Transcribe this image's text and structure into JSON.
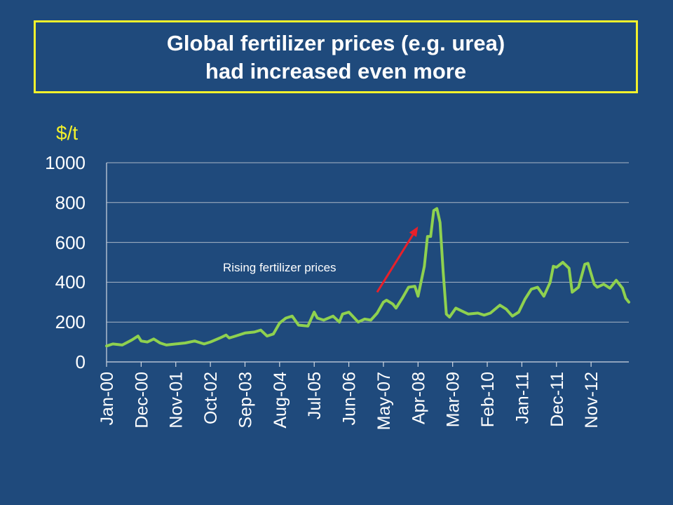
{
  "title": {
    "line1": "Global fertilizer prices (e.g. urea)",
    "line2": "had increased even more"
  },
  "colors": {
    "background": "#1f4a7c",
    "title_border": "#f3f12c",
    "series": "#8fd14f",
    "arrow": "#e8202a",
    "grid": "#a9b6c6"
  },
  "chart_data": {
    "type": "line",
    "title": "Global fertilizer prices (e.g. urea)",
    "ylabel": "$/t",
    "ylim": [
      0,
      1000
    ],
    "yticks": [
      0,
      200,
      400,
      600,
      800,
      1000
    ],
    "xtick_labels": [
      "Jan-00",
      "Dec-00",
      "Nov-01",
      "Oct-02",
      "Sep-03",
      "Aug-04",
      "Jul-05",
      "Jun-06",
      "May-07",
      "Apr-08",
      "Mar-09",
      "Feb-10",
      "Jan-11",
      "Dec-11",
      "Nov-12"
    ],
    "x_start": "Jan-00",
    "x_end": "Nov-13",
    "grid": "horizontal",
    "annotation": {
      "text": "Rising fertilizer prices",
      "arrow_from": [
        "Mar-07",
        350
      ],
      "arrow_to": [
        "Apr-08",
        680
      ]
    },
    "series": [
      {
        "points": [
          [
            "Jan-00",
            80
          ],
          [
            "Mar-00",
            90
          ],
          [
            "Jun-00",
            85
          ],
          [
            "Sep-00",
            110
          ],
          [
            "Nov-00",
            130
          ],
          [
            "Dec-00",
            105
          ],
          [
            "Feb-01",
            100
          ],
          [
            "Apr-01",
            115
          ],
          [
            "Jun-01",
            95
          ],
          [
            "Aug-01",
            85
          ],
          [
            "Nov-01",
            90
          ],
          [
            "Feb-02",
            95
          ],
          [
            "May-02",
            105
          ],
          [
            "Aug-02",
            90
          ],
          [
            "Oct-02",
            100
          ],
          [
            "Jan-03",
            120
          ],
          [
            "Mar-03",
            135
          ],
          [
            "Apr-03",
            120
          ],
          [
            "Jun-03",
            130
          ],
          [
            "Sep-03",
            145
          ],
          [
            "Dec-03",
            150
          ],
          [
            "Feb-04",
            160
          ],
          [
            "Apr-04",
            130
          ],
          [
            "Jun-04",
            140
          ],
          [
            "Aug-04",
            195
          ],
          [
            "Oct-04",
            220
          ],
          [
            "Dec-04",
            230
          ],
          [
            "Feb-05",
            185
          ],
          [
            "May-05",
            180
          ],
          [
            "Jul-05",
            250
          ],
          [
            "Aug-05",
            220
          ],
          [
            "Oct-05",
            210
          ],
          [
            "Jan-06",
            230
          ],
          [
            "Mar-06",
            200
          ],
          [
            "Apr-06",
            240
          ],
          [
            "Jun-06",
            250
          ],
          [
            "Sep-06",
            200
          ],
          [
            "Nov-06",
            215
          ],
          [
            "Jan-07",
            210
          ],
          [
            "Mar-07",
            245
          ],
          [
            "May-07",
            300
          ],
          [
            "Jun-07",
            310
          ],
          [
            "Aug-07",
            290
          ],
          [
            "Sep-07",
            270
          ],
          [
            "Nov-07",
            320
          ],
          [
            "Jan-08",
            375
          ],
          [
            "Mar-08",
            380
          ],
          [
            "Apr-08",
            330
          ],
          [
            "Jun-08",
            480
          ],
          [
            "Jul-08",
            630
          ],
          [
            "Aug-08",
            630
          ],
          [
            "Sep-08",
            760
          ],
          [
            "Oct-08",
            770
          ],
          [
            "Nov-08",
            700
          ],
          [
            "Dec-08",
            450
          ],
          [
            "Jan-09",
            240
          ],
          [
            "Feb-09",
            225
          ],
          [
            "Apr-09",
            270
          ],
          [
            "Jun-09",
            255
          ],
          [
            "Aug-09",
            240
          ],
          [
            "Nov-09",
            245
          ],
          [
            "Jan-10",
            235
          ],
          [
            "Mar-10",
            245
          ],
          [
            "Jun-10",
            285
          ],
          [
            "Aug-10",
            265
          ],
          [
            "Oct-10",
            230
          ],
          [
            "Dec-10",
            250
          ],
          [
            "Feb-11",
            315
          ],
          [
            "Apr-11",
            365
          ],
          [
            "Jun-11",
            375
          ],
          [
            "Aug-11",
            330
          ],
          [
            "Oct-11",
            400
          ],
          [
            "Nov-11",
            480
          ],
          [
            "Dec-11",
            475
          ],
          [
            "Feb-12",
            500
          ],
          [
            "Apr-12",
            470
          ],
          [
            "May-12",
            350
          ],
          [
            "Jul-12",
            375
          ],
          [
            "Sep-12",
            490
          ],
          [
            "Oct-12",
            495
          ],
          [
            "Dec-12",
            390
          ],
          [
            "Jan-13",
            375
          ],
          [
            "Mar-13",
            390
          ],
          [
            "May-13",
            370
          ],
          [
            "Jul-13",
            410
          ],
          [
            "Sep-13",
            370
          ],
          [
            "Oct-13",
            320
          ],
          [
            "Nov-13",
            300
          ]
        ]
      }
    ]
  }
}
